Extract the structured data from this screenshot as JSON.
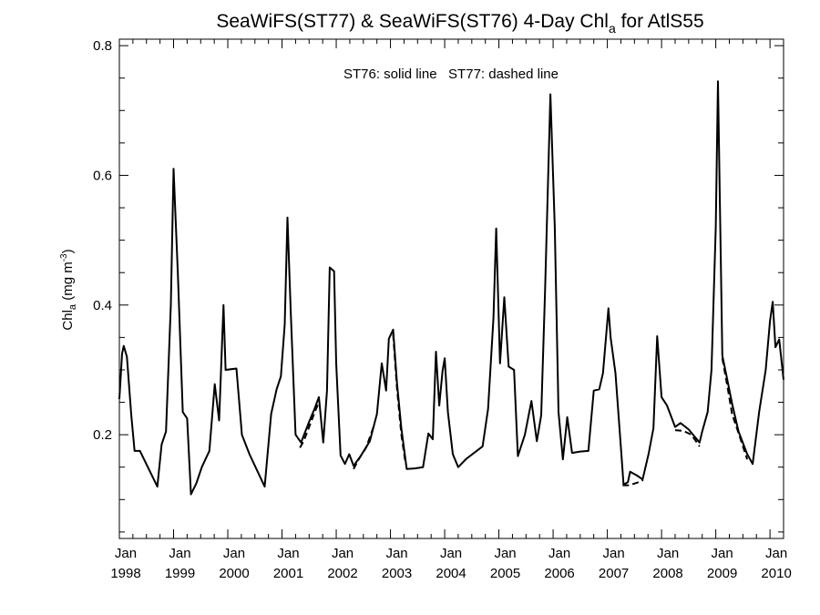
{
  "chart_data": {
    "type": "line",
    "title": {
      "main": "SeaWiFS(ST77) & SeaWiFS(ST76) 4-Day Chl",
      "subscript": "a",
      "suffix": " for AtlS55"
    },
    "ylabel": {
      "main": "Chl",
      "subscript": "a",
      "unit": " (mg m",
      "superscript": "-3",
      "close": ")"
    },
    "annotation": "ST76: solid line   ST77: dashed line",
    "xlim": [
      1998.0,
      2010.25
    ],
    "ylim": [
      0.04,
      0.81
    ],
    "yticks": [
      {
        "value": 0.2,
        "label": "0.2"
      },
      {
        "value": 0.4,
        "label": "0.4"
      },
      {
        "value": 0.6,
        "label": "0.6"
      },
      {
        "value": 0.8,
        "label": "0.8"
      }
    ],
    "xticks": [
      {
        "value": 1998,
        "month": "Jan",
        "year": "1998"
      },
      {
        "value": 1999,
        "month": "Jan",
        "year": "1999"
      },
      {
        "value": 2000,
        "month": "Jan",
        "year": "2000"
      },
      {
        "value": 2001,
        "month": "Jan",
        "year": "2001"
      },
      {
        "value": 2002,
        "month": "Jan",
        "year": "2002"
      },
      {
        "value": 2003,
        "month": "Jan",
        "year": "2003"
      },
      {
        "value": 2004,
        "month": "Jan",
        "year": "2004"
      },
      {
        "value": 2005,
        "month": "Jan",
        "year": "2005"
      },
      {
        "value": 2006,
        "month": "Jan",
        "year": "2006"
      },
      {
        "value": 2007,
        "month": "Jan",
        "year": "2007"
      },
      {
        "value": 2008,
        "month": "Jan",
        "year": "2008"
      },
      {
        "value": 2009,
        "month": "Jan",
        "year": "2009"
      },
      {
        "value": 2010,
        "month": "Jan",
        "year": "2010"
      }
    ],
    "series": [
      {
        "style": "solid",
        "segments": [
          [
            [
              1998.0,
              0.255
            ],
            [
              1998.05,
              0.325
            ],
            [
              1998.08,
              0.337
            ],
            [
              1998.14,
              0.32
            ],
            [
              1998.22,
              0.23
            ],
            [
              1998.28,
              0.175
            ],
            [
              1998.38,
              0.175
            ],
            [
              1998.7,
              0.12
            ],
            [
              1998.78,
              0.185
            ],
            [
              1998.86,
              0.205
            ],
            [
              1998.95,
              0.4
            ],
            [
              1999.0,
              0.61
            ],
            [
              1999.08,
              0.445
            ],
            [
              1999.17,
              0.235
            ],
            [
              1999.25,
              0.225
            ],
            [
              1999.32,
              0.108
            ],
            [
              1999.42,
              0.125
            ],
            [
              1999.52,
              0.15
            ],
            [
              1999.66,
              0.175
            ],
            [
              1999.76,
              0.278
            ],
            [
              1999.84,
              0.222
            ],
            [
              1999.92,
              0.4
            ],
            [
              1999.96,
              0.3
            ],
            [
              2000.16,
              0.302
            ],
            [
              2000.26,
              0.2
            ],
            [
              2000.4,
              0.17
            ],
            [
              2000.68,
              0.12
            ],
            [
              2000.8,
              0.232
            ],
            [
              2000.9,
              0.27
            ],
            [
              2000.98,
              0.29
            ],
            [
              2001.05,
              0.37
            ],
            [
              2001.1,
              0.535
            ],
            [
              2001.16,
              0.39
            ],
            [
              2001.25,
              0.2
            ],
            [
              2001.35,
              0.188
            ],
            [
              2001.5,
              0.22
            ],
            [
              2001.6,
              0.24
            ],
            [
              2001.68,
              0.258
            ],
            [
              2001.76,
              0.188
            ],
            [
              2001.83,
              0.268
            ],
            [
              2001.88,
              0.458
            ],
            [
              2001.96,
              0.452
            ],
            [
              2002.0,
              0.31
            ],
            [
              2002.08,
              0.168
            ],
            [
              2002.16,
              0.155
            ],
            [
              2002.24,
              0.17
            ],
            [
              2002.32,
              0.152
            ],
            [
              2002.45,
              0.167
            ],
            [
              2002.62,
              0.19
            ],
            [
              2002.75,
              0.232
            ],
            [
              2002.84,
              0.31
            ],
            [
              2002.92,
              0.268
            ],
            [
              2002.97,
              0.348
            ],
            [
              2003.05,
              0.362
            ],
            [
              2003.12,
              0.28
            ],
            [
              2003.2,
              0.21
            ],
            [
              2003.3,
              0.147
            ],
            [
              2003.45,
              0.148
            ],
            [
              2003.6,
              0.15
            ],
            [
              2003.7,
              0.202
            ],
            [
              2003.78,
              0.193
            ],
            [
              2003.84,
              0.328
            ],
            [
              2003.9,
              0.245
            ],
            [
              2003.96,
              0.298
            ],
            [
              2004.0,
              0.318
            ],
            [
              2004.06,
              0.235
            ],
            [
              2004.15,
              0.17
            ],
            [
              2004.25,
              0.15
            ],
            [
              2004.4,
              0.163
            ],
            [
              2004.7,
              0.182
            ],
            [
              2004.8,
              0.24
            ],
            [
              2004.9,
              0.38
            ],
            [
              2004.95,
              0.518
            ],
            [
              2005.02,
              0.31
            ],
            [
              2005.1,
              0.412
            ],
            [
              2005.18,
              0.305
            ],
            [
              2005.28,
              0.3
            ],
            [
              2005.35,
              0.167
            ],
            [
              2005.48,
              0.2
            ],
            [
              2005.6,
              0.252
            ],
            [
              2005.7,
              0.19
            ],
            [
              2005.78,
              0.23
            ],
            [
              2005.85,
              0.42
            ],
            [
              2005.95,
              0.725
            ],
            [
              2006.03,
              0.52
            ],
            [
              2006.1,
              0.235
            ],
            [
              2006.18,
              0.162
            ],
            [
              2006.26,
              0.227
            ],
            [
              2006.35,
              0.172
            ],
            [
              2006.5,
              0.174
            ],
            [
              2006.65,
              0.175
            ],
            [
              2006.75,
              0.268
            ],
            [
              2006.85,
              0.27
            ],
            [
              2006.92,
              0.295
            ],
            [
              2007.02,
              0.395
            ],
            [
              2007.06,
              0.35
            ],
            [
              2007.15,
              0.295
            ],
            [
              2007.25,
              0.18
            ],
            [
              2007.3,
              0.123
            ],
            [
              2007.38,
              0.127
            ],
            [
              2007.42,
              0.143
            ],
            [
              2007.55,
              0.137
            ],
            [
              2007.65,
              0.131
            ],
            [
              2007.76,
              0.17
            ],
            [
              2007.85,
              0.21
            ],
            [
              2007.92,
              0.352
            ],
            [
              2008.0,
              0.258
            ],
            [
              2008.1,
              0.245
            ],
            [
              2008.25,
              0.212
            ],
            [
              2008.35,
              0.218
            ],
            [
              2008.5,
              0.208
            ],
            [
              2008.7,
              0.188
            ],
            [
              2008.75,
              0.205
            ],
            [
              2008.85,
              0.235
            ],
            [
              2008.92,
              0.3
            ],
            [
              2009.0,
              0.52
            ],
            [
              2009.04,
              0.745
            ],
            [
              2009.12,
              0.322
            ],
            [
              2009.2,
              0.29
            ],
            [
              2009.3,
              0.248
            ],
            [
              2009.42,
              0.205
            ],
            [
              2009.58,
              0.17
            ],
            [
              2009.68,
              0.155
            ],
            [
              2009.8,
              0.235
            ],
            [
              2009.92,
              0.3
            ],
            [
              2010.0,
              0.375
            ],
            [
              2010.05,
              0.405
            ],
            [
              2010.1,
              0.335
            ],
            [
              2010.17,
              0.347
            ],
            [
              2010.25,
              0.285
            ]
          ]
        ]
      },
      {
        "style": "dashed",
        "segments": [
          [
            [
              2001.33,
              0.18
            ],
            [
              2001.4,
              0.19
            ],
            [
              2001.5,
              0.212
            ],
            [
              2001.6,
              0.234
            ],
            [
              2001.66,
              0.246
            ]
          ],
          [
            [
              2002.32,
              0.147
            ],
            [
              2002.4,
              0.16
            ],
            [
              2002.55,
              0.18
            ],
            [
              2002.7,
              0.215
            ]
          ],
          [
            [
              2003.05,
              0.355
            ],
            [
              2003.12,
              0.272
            ],
            [
              2003.2,
              0.2
            ],
            [
              2003.28,
              0.155
            ]
          ],
          [
            [
              2007.28,
              0.122
            ],
            [
              2007.4,
              0.122
            ],
            [
              2007.55,
              0.126
            ],
            [
              2007.66,
              0.13
            ]
          ],
          [
            [
              2008.25,
              0.207
            ],
            [
              2008.4,
              0.206
            ],
            [
              2008.55,
              0.2
            ],
            [
              2008.7,
              0.182
            ]
          ],
          [
            [
              2009.12,
              0.318
            ],
            [
              2009.22,
              0.272
            ],
            [
              2009.3,
              0.232
            ],
            [
              2009.45,
              0.195
            ],
            [
              2009.58,
              0.162
            ]
          ]
        ]
      }
    ]
  }
}
